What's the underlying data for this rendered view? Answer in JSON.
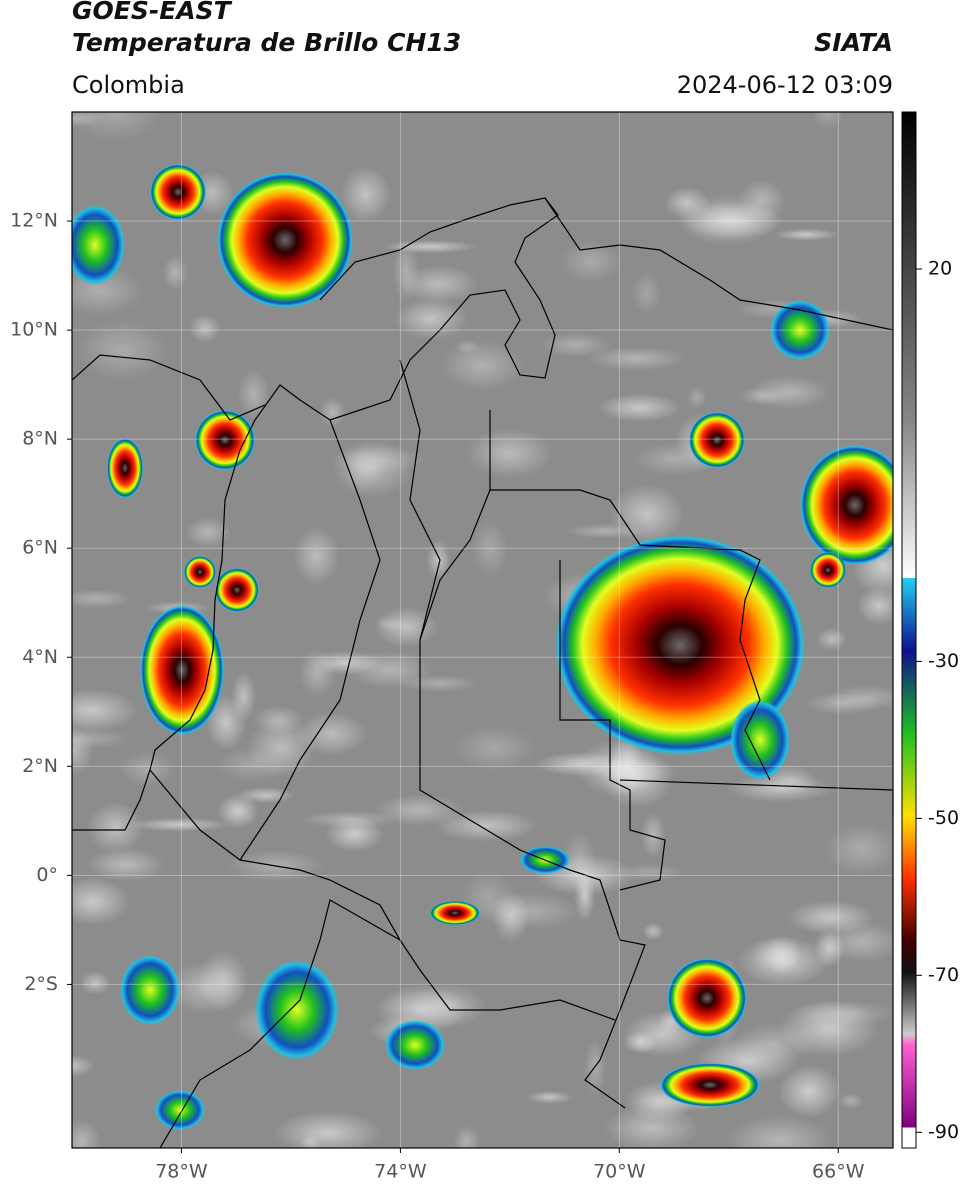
{
  "header": {
    "title": "GOES-EAST",
    "subtitle": "Temperatura de Brillo CH13",
    "source": "SIATA",
    "region": "Colombia",
    "datetime": "2024-06-12 03:09"
  },
  "map": {
    "xlim": [
      -80,
      -65
    ],
    "ylim": [
      -5,
      14
    ],
    "xticks": [
      {
        "value": -78,
        "label": "78°W"
      },
      {
        "value": -74,
        "label": "74°W"
      },
      {
        "value": -70,
        "label": "70°W"
      },
      {
        "value": -66,
        "label": "66°W"
      }
    ],
    "yticks": [
      {
        "value": 12,
        "label": "12°N"
      },
      {
        "value": 10,
        "label": "10°N"
      },
      {
        "value": 8,
        "label": "8°N"
      },
      {
        "value": 6,
        "label": "6°N"
      },
      {
        "value": 4,
        "label": "4°N"
      },
      {
        "value": 2,
        "label": "2°N"
      },
      {
        "value": 0,
        "label": "0°"
      },
      {
        "value": -2,
        "label": "2°S"
      }
    ],
    "grid": true
  },
  "colorbar": {
    "lim": [
      -92,
      40
    ],
    "ticks": [
      20,
      -30,
      -50,
      -70,
      -90
    ]
  }
}
